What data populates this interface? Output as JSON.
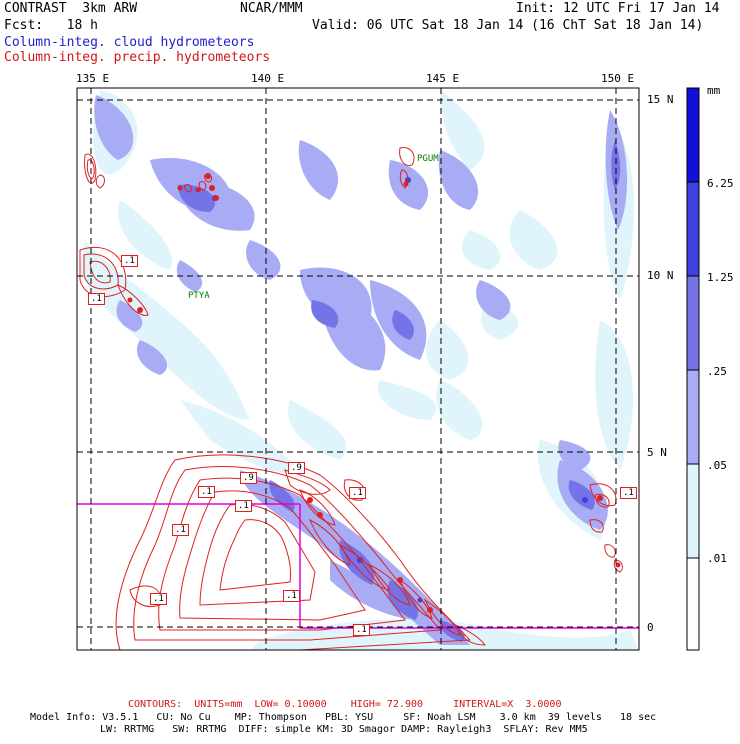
{
  "header": {
    "model_title": "CONTRAST  3km ARW",
    "center": "NCAR/MMM",
    "init": "Init: 12 UTC Fri 17 Jan 14",
    "fcst": "Fcst:   18 h",
    "valid": "Valid: 06 UTC Sat 18 Jan 14 (16 ChT Sat 18 Jan 14)",
    "field_blue": "Column-integ. cloud hydrometeors",
    "field_red": "Column-integ. precip. hydrometeors"
  },
  "map": {
    "lon_labels": [
      "135 E",
      "140 E",
      "145 E",
      "150 E"
    ],
    "lat_labels": [
      "15 N",
      "10 N",
      "5 N",
      "0"
    ],
    "station_labels": [
      "PGUM",
      "PTYA"
    ],
    "contour_labels": [
      ".1",
      ".1",
      ".1",
      ".9",
      ".9",
      ".1",
      ".1",
      ".1",
      ".1",
      ".1",
      ".1",
      ".1"
    ],
    "colors": {
      "cloud_light": "#e0f4fb",
      "cloud_mid": "#a0a8f0",
      "cloud_dark": "#7070e8",
      "cloud_heavy": "#3a3ae0",
      "precip_contour": "#e02020",
      "box_outline": "#e000e0",
      "station_text": "#008000"
    }
  },
  "colorbar": {
    "unit": "mm",
    "labels": [
      "6.25",
      "1.25",
      ".25",
      ".05",
      ".01"
    ],
    "colors": [
      "#1010d8",
      "#4040e0",
      "#7474e8",
      "#a8acf4",
      "#e0f4fb",
      "#ffffff"
    ]
  },
  "footer": {
    "contours": "CONTOURS:  UNITS=mm  LOW= 0.10000    HIGH= 72.900     INTERVAL=X  3.0000",
    "model_info_1": "Model Info: V3.5.1   CU: No Cu    MP: Thompson   PBL: YSU     SF: Noah LSM    3.0 km  39 levels   18 sec",
    "model_info_2": "LW: RRTMG   SW: RRTMG  DIFF: simple KM: 3D Smagor DAMP: Rayleigh3  SFLAY: Rev MM5"
  }
}
